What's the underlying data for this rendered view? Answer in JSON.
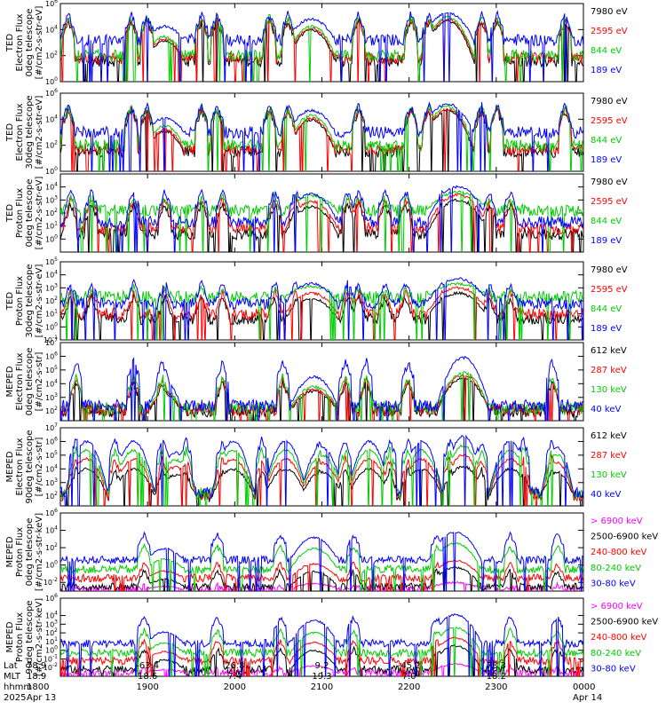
{
  "chart_data": [
    {
      "type": "line",
      "ylabel_lines": [
        "TED",
        "Electron Flux",
        "0deg telescope",
        "[#/cm2-s-str-eV]"
      ],
      "ylim_log10": [
        0,
        6
      ],
      "yticks": [
        {
          "base": "10",
          "exp": "6"
        },
        {
          "base": "10",
          "exp": "4"
        },
        {
          "base": "10",
          "exp": "2"
        },
        {
          "base": "10",
          "exp": "0"
        }
      ],
      "shape": "ted_e",
      "series": [
        {
          "name": "7980 eV",
          "color": "#000000",
          "baseline": 1.6,
          "peak": 5.0
        },
        {
          "name": "2595 eV",
          "color": "#ff0000",
          "baseline": 1.8,
          "peak": 5.1
        },
        {
          "name": "844 eV",
          "color": "#00cc00",
          "baseline": 2.0,
          "peak": 5.3
        },
        {
          "name": "189 eV",
          "color": "#0000ff",
          "baseline": 3.2,
          "peak": 5.5
        }
      ]
    },
    {
      "type": "line",
      "ylabel_lines": [
        "TED",
        "Electron Flux",
        "30deg telescope",
        "[#/cm2-s-str-eV]"
      ],
      "ylim_log10": [
        0,
        6
      ],
      "yticks": [
        {
          "base": "10",
          "exp": "6"
        },
        {
          "base": "10",
          "exp": "4"
        },
        {
          "base": "10",
          "exp": "2"
        },
        {
          "base": "10",
          "exp": "0"
        }
      ],
      "shape": "ted_e",
      "series": [
        {
          "name": "7980 eV",
          "color": "#000000",
          "baseline": 1.5,
          "peak": 5.0
        },
        {
          "name": "2595 eV",
          "color": "#ff0000",
          "baseline": 1.7,
          "peak": 5.1
        },
        {
          "name": "844 eV",
          "color": "#00cc00",
          "baseline": 2.0,
          "peak": 5.3
        },
        {
          "name": "189 eV",
          "color": "#0000ff",
          "baseline": 3.0,
          "peak": 5.4
        }
      ]
    },
    {
      "type": "line",
      "ylabel_lines": [
        "TED",
        "Proton Flux",
        "0deg telescope",
        "[#/cm2-s-str-eV]"
      ],
      "ylim_log10": [
        -1,
        5
      ],
      "yticks": [
        {
          "base": "10",
          "exp": "4"
        },
        {
          "base": "10",
          "exp": "3"
        },
        {
          "base": "10",
          "exp": "2"
        },
        {
          "base": "10",
          "exp": "1"
        },
        {
          "base": "10",
          "exp": "0"
        }
      ],
      "shape": "ted_p",
      "series": [
        {
          "name": "7980 eV",
          "color": "#000000",
          "baseline": 0.4,
          "peak": 3.0
        },
        {
          "name": "2595 eV",
          "color": "#ff0000",
          "baseline": 0.8,
          "peak": 3.4
        },
        {
          "name": "844 eV",
          "color": "#00cc00",
          "baseline": 2.2,
          "peak": 3.6
        },
        {
          "name": "189 eV",
          "color": "#0000ff",
          "baseline": 1.3,
          "peak": 4.0
        }
      ]
    },
    {
      "type": "line",
      "ylabel_lines": [
        "TED",
        "Proton Flux",
        "30deg telescope",
        "[#/cm2-s-str-eV]"
      ],
      "ylim_log10": [
        -1,
        5
      ],
      "yticks": [
        {
          "base": "10",
          "exp": "5"
        },
        {
          "base": "10",
          "exp": "4"
        },
        {
          "base": "10",
          "exp": "3"
        },
        {
          "base": "10",
          "exp": "2"
        },
        {
          "base": "10",
          "exp": "1"
        },
        {
          "base": "10",
          "exp": "0"
        },
        {
          "base": "10",
          "exp": "-1"
        }
      ],
      "shape": "ted_p",
      "series": [
        {
          "name": "7980 eV",
          "color": "#000000",
          "baseline": 0.6,
          "peak": 2.6
        },
        {
          "name": "2595 eV",
          "color": "#ff0000",
          "baseline": 1.0,
          "peak": 3.0
        },
        {
          "name": "844 eV",
          "color": "#00cc00",
          "baseline": 2.3,
          "peak": 3.3
        },
        {
          "name": "189 eV",
          "color": "#0000ff",
          "baseline": 1.8,
          "peak": 3.7
        }
      ]
    },
    {
      "type": "line",
      "ylabel_lines": [
        "MEPED",
        "Electron Flux",
        "0deg telescope",
        "[#/cm2-s-str]"
      ],
      "ylim_log10": [
        1.3,
        7
      ],
      "yticks": [
        {
          "base": "10",
          "exp": "7"
        },
        {
          "base": "10",
          "exp": "6"
        },
        {
          "base": "10",
          "exp": "5"
        },
        {
          "base": "10",
          "exp": "4"
        },
        {
          "base": "10",
          "exp": "3"
        },
        {
          "base": "10",
          "exp": "2"
        }
      ],
      "shape": "meped_e0",
      "series": [
        {
          "name": "612 keV",
          "color": "#000000",
          "baseline": 2.0,
          "peak": 4.4
        },
        {
          "name": "287 keV",
          "color": "#ff0000",
          "baseline": 2.1,
          "peak": 4.6
        },
        {
          "name": "130 keV",
          "color": "#00cc00",
          "baseline": 2.2,
          "peak": 4.8
        },
        {
          "name": "40 keV",
          "color": "#0000ff",
          "baseline": 2.4,
          "peak": 5.9
        }
      ]
    },
    {
      "type": "line",
      "ylabel_lines": [
        "MEPED",
        "Electron Flux",
        "90deg telescope",
        "[#/cm2-s-str]"
      ],
      "ylim_log10": [
        1.3,
        7
      ],
      "yticks": [
        {
          "base": "10",
          "exp": "7"
        },
        {
          "base": "10",
          "exp": "6"
        },
        {
          "base": "10",
          "exp": "5"
        },
        {
          "base": "10",
          "exp": "4"
        },
        {
          "base": "10",
          "exp": "3"
        },
        {
          "base": "10",
          "exp": "2"
        }
      ],
      "shape": "meped_e90",
      "series": [
        {
          "name": "612 keV",
          "color": "#000000",
          "baseline": 2.0,
          "peak": 4.2
        },
        {
          "name": "287 keV",
          "color": "#ff0000",
          "baseline": 2.1,
          "peak": 5.0
        },
        {
          "name": "130 keV",
          "color": "#00cc00",
          "baseline": 2.2,
          "peak": 5.7
        },
        {
          "name": "40 keV",
          "color": "#0000ff",
          "baseline": 2.3,
          "peak": 6.4
        }
      ]
    },
    {
      "type": "line",
      "ylabel_lines": [
        "MEPED",
        "Proton Flux",
        "0deg telescope",
        "[#/cm2-s-str-keV]"
      ],
      "ylim_log10": [
        -3,
        6
      ],
      "yticks": [
        {
          "base": "10",
          "exp": "6"
        },
        {
          "base": "10",
          "exp": "4"
        },
        {
          "base": "10",
          "exp": "2"
        },
        {
          "base": "10",
          "exp": "0"
        },
        {
          "base": "10",
          "exp": "-2"
        }
      ],
      "shape": "meped_p",
      "series": [
        {
          "name": "> 6900 keV",
          "color": "#ff00ff",
          "baseline": -2.8,
          "peak": -2.0
        },
        {
          "name": "2500-6900 keV",
          "color": "#000000",
          "baseline": -2.5,
          "peak": -0.3
        },
        {
          "name": "240-800 keV",
          "color": "#ff0000",
          "baseline": -1.5,
          "peak": 0.5
        },
        {
          "name": "80-240 keV",
          "color": "#00cc00",
          "baseline": -0.5,
          "peak": 2.5
        },
        {
          "name": "30-80 keV",
          "color": "#0000ff",
          "baseline": 0.6,
          "peak": 3.8
        }
      ]
    },
    {
      "type": "line",
      "ylabel_lines": [
        "MEPED",
        "Proton Flux",
        "90deg telescope",
        "[#/cm2-s-str-keV]"
      ],
      "ylim_log10": [
        -3,
        6
      ],
      "yticks": [
        {
          "base": "10",
          "exp": "6"
        },
        {
          "base": "10",
          "exp": "4"
        },
        {
          "base": "10",
          "exp": "3"
        },
        {
          "base": "10",
          "exp": "2"
        },
        {
          "base": "10",
          "exp": "1"
        },
        {
          "base": "10",
          "exp": "0"
        },
        {
          "base": "10",
          "exp": "-1"
        },
        {
          "base": "10",
          "exp": "-2"
        }
      ],
      "shape": "meped_p",
      "series": [
        {
          "name": "> 6900 keV",
          "color": "#ff00ff",
          "baseline": -2.6,
          "peak": -1.6
        },
        {
          "name": "2500-6900 keV",
          "color": "#000000",
          "baseline": -2.2,
          "peak": 0.5
        },
        {
          "name": "240-800 keV",
          "color": "#ff0000",
          "baseline": -1.2,
          "peak": 1.4
        },
        {
          "name": "80-240 keV",
          "color": "#00cc00",
          "baseline": -0.3,
          "peak": 2.6
        },
        {
          "name": "30-80 keV",
          "color": "#0000ff",
          "baseline": 0.8,
          "peak": 4.1
        }
      ]
    }
  ],
  "time_axis": {
    "start_hhmm": "1800",
    "end_hhmm": "0000",
    "rows": [
      {
        "label": "Lat",
        "values": [
          "78.9",
          "-63.4",
          "26.8",
          "9.2",
          "-45.2",
          "78.3",
          ""
        ]
      },
      {
        "label": "MLT",
        "values": [
          "18.9",
          "18.6",
          "7.4",
          "19.3",
          "7.0",
          "18.2",
          ""
        ]
      },
      {
        "label": "hhmm",
        "values": [
          "1800",
          "1900",
          "2000",
          "2100",
          "2200",
          "2300",
          "0000"
        ]
      },
      {
        "label": "2025",
        "values": [
          "Apr 13",
          "",
          "",
          "",
          "",
          "",
          "Apr 14"
        ]
      }
    ]
  }
}
